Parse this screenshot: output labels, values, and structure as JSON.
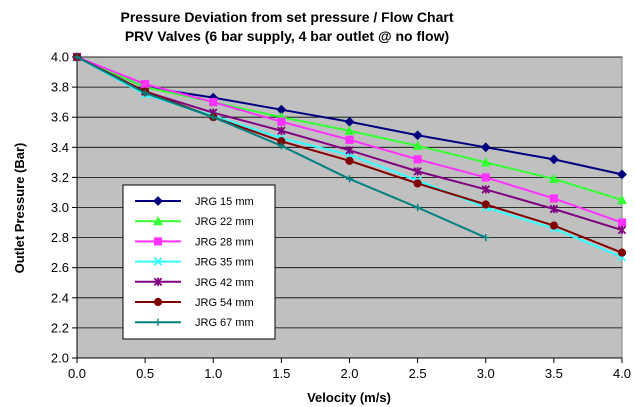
{
  "chart_data": {
    "type": "line",
    "title": "Pressure Deviation from set pressure / Flow Chart",
    "subtitle": "PRV Valves (6 bar supply, 4 bar outlet @ no flow)",
    "xlabel": "Velocity (m/s)",
    "ylabel": "Outlet Pressure (Bar)",
    "xlim": [
      0,
      4
    ],
    "ylim": [
      2,
      4
    ],
    "x_ticks": [
      "0.0",
      "0.5",
      "1.0",
      "1.5",
      "2.0",
      "2.5",
      "3.0",
      "3.5",
      "4.0"
    ],
    "y_ticks": [
      "2.0",
      "2.2",
      "2.4",
      "2.6",
      "2.8",
      "3.0",
      "3.2",
      "3.4",
      "3.6",
      "3.8",
      "4.0"
    ],
    "grid": "horizontal",
    "plot_background": "#c0c0c0",
    "legend_position": "inside-left",
    "series": [
      {
        "name": "JRG 15 mm",
        "color": "#000080",
        "marker": "diamond",
        "points": [
          [
            0,
            4.0
          ],
          [
            0.5,
            3.8
          ],
          [
            1.0,
            3.73
          ],
          [
            1.5,
            3.65
          ],
          [
            2.0,
            3.57
          ],
          [
            2.5,
            3.48
          ],
          [
            3.0,
            3.4
          ],
          [
            3.5,
            3.32
          ],
          [
            4.0,
            3.22
          ]
        ]
      },
      {
        "name": "JRG 22 mm",
        "color": "#33ff33",
        "marker": "triangle",
        "points": [
          [
            0,
            4.0
          ],
          [
            0.5,
            3.8
          ],
          [
            1.0,
            3.7
          ],
          [
            1.5,
            3.6
          ],
          [
            2.0,
            3.51
          ],
          [
            2.5,
            3.41
          ],
          [
            3.0,
            3.3
          ],
          [
            3.5,
            3.19
          ],
          [
            4.0,
            3.05
          ]
        ]
      },
      {
        "name": "JRG 28 mm",
        "color": "#ff33ff",
        "marker": "square",
        "points": [
          [
            0,
            4.0
          ],
          [
            0.5,
            3.82
          ],
          [
            1.0,
            3.7
          ],
          [
            1.5,
            3.57
          ],
          [
            2.0,
            3.45
          ],
          [
            2.5,
            3.32
          ],
          [
            3.0,
            3.2
          ],
          [
            3.5,
            3.06
          ],
          [
            4.0,
            2.9
          ]
        ]
      },
      {
        "name": "JRG 35 mm",
        "color": "#33ffff",
        "marker": "x",
        "points": [
          [
            0,
            4.0
          ],
          [
            0.5,
            3.75
          ],
          [
            1.0,
            3.61
          ],
          [
            1.5,
            3.46
          ],
          [
            2.0,
            3.35
          ],
          [
            2.5,
            3.18
          ],
          [
            3.0,
            3.0
          ],
          [
            3.5,
            2.86
          ],
          [
            4.0,
            2.67
          ]
        ]
      },
      {
        "name": "JRG 42 mm",
        "color": "#800080",
        "marker": "asterisk",
        "points": [
          [
            0,
            4.0
          ],
          [
            0.5,
            3.77
          ],
          [
            1.0,
            3.63
          ],
          [
            1.5,
            3.51
          ],
          [
            2.0,
            3.38
          ],
          [
            2.5,
            3.24
          ],
          [
            3.0,
            3.12
          ],
          [
            3.5,
            2.99
          ],
          [
            4.0,
            2.85
          ]
        ]
      },
      {
        "name": "JRG 54 mm",
        "color": "#800000",
        "marker": "circle",
        "points": [
          [
            0,
            4.0
          ],
          [
            0.5,
            3.77
          ],
          [
            1.0,
            3.6
          ],
          [
            1.5,
            3.44
          ],
          [
            2.0,
            3.31
          ],
          [
            2.5,
            3.16
          ],
          [
            3.0,
            3.02
          ],
          [
            3.5,
            2.88
          ],
          [
            4.0,
            2.7
          ]
        ]
      },
      {
        "name": "JRG 67 mm",
        "color": "#008080",
        "marker": "plus",
        "points": [
          [
            0,
            4.0
          ],
          [
            0.5,
            3.76
          ],
          [
            1.0,
            3.6
          ],
          [
            1.5,
            3.41
          ],
          [
            2.0,
            3.19
          ],
          [
            2.5,
            3.0
          ],
          [
            3.0,
            2.8
          ]
        ]
      }
    ]
  }
}
